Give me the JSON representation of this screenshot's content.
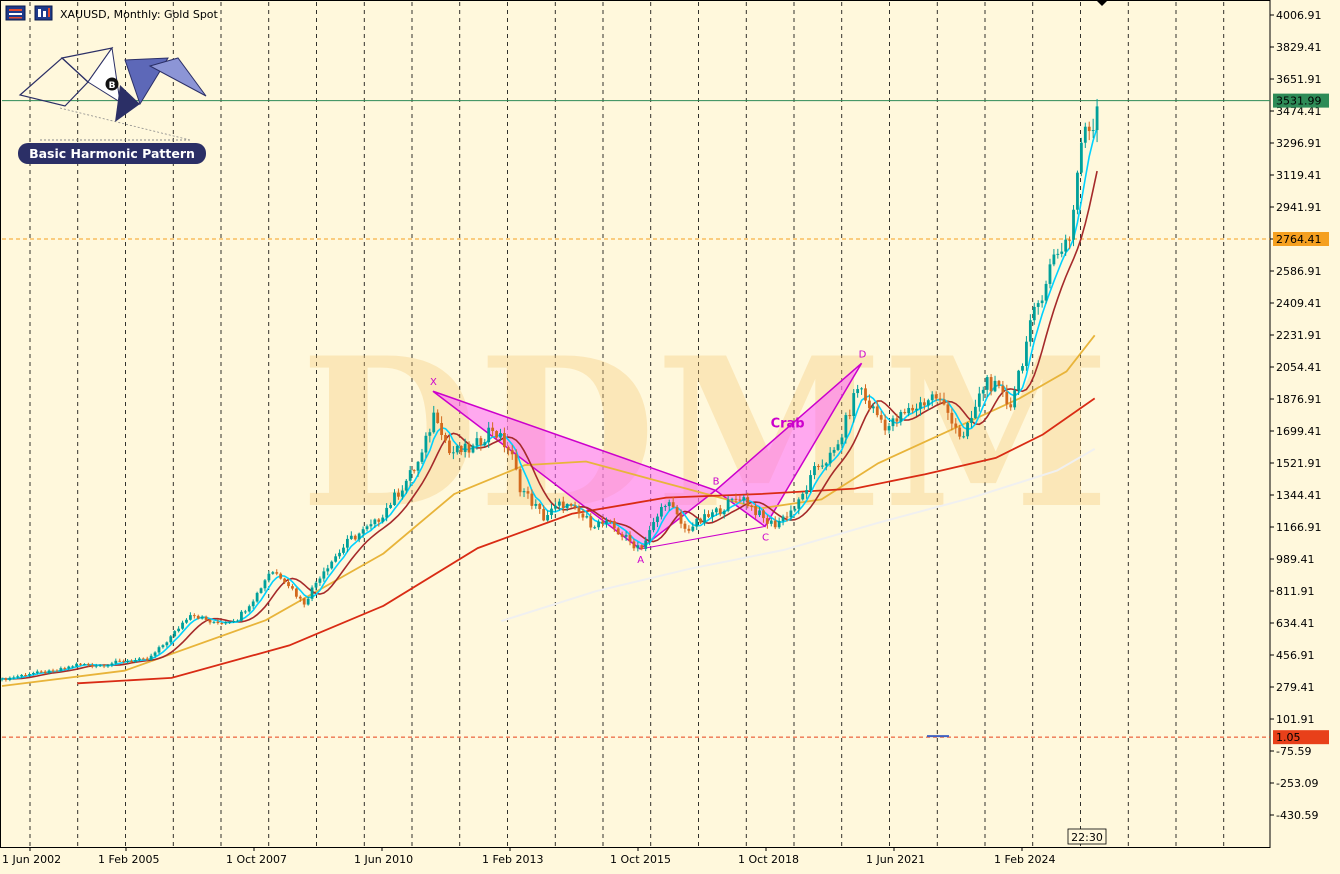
{
  "window": {
    "title": "XAUUSD, Monthly:  Gold Spot",
    "icons": [
      "window-menu-icon",
      "chart-type-icon"
    ]
  },
  "logo": {
    "text": "Basic Harmonic Pattern",
    "badge_letter": "B"
  },
  "watermark": "DDMM",
  "timer": "22:30",
  "colors": {
    "background": "#fff8dc",
    "bull_candle": "#00a09a",
    "bear_candle": "#d2691e",
    "fast_ma": "#00d2ff",
    "signal_ma": "#a52a2a",
    "ma_orange": "#e8b43a",
    "ma_red": "#d92b14",
    "ma_white": "#f0f0f0",
    "pattern_fill": "#ff66ff",
    "pattern_line": "#cc00cc",
    "price_line": "#2e8b57",
    "level_line": "#f5a020",
    "zero_line": "#e8401a",
    "watermark": "#f5c878"
  },
  "chart_data": {
    "type": "candlestick",
    "title": "XAUUSD, Monthly:  Gold Spot",
    "ylim": [
      -430.59,
      4006.91
    ],
    "y_ticks": [
      "4006.91",
      "3829.41",
      "3651.91",
      "3474.41",
      "3296.91",
      "3119.41",
      "2941.91",
      "2764.41",
      "2586.91",
      "2409.41",
      "2231.91",
      "2054.41",
      "1876.91",
      "1699.41",
      "1521.91",
      "1344.41",
      "1166.91",
      "989.41",
      "811.91",
      "634.41",
      "456.91",
      "279.41",
      "101.91",
      "-75.59",
      "-253.09",
      "-430.59"
    ],
    "x_ticks": [
      "1 Jun 2002",
      "1 Feb 2005",
      "1 Oct 2007",
      "1 Jun 2010",
      "1 Feb 2013",
      "1 Oct 2015",
      "1 Oct 2018",
      "1 Jun 2021",
      "1 Feb 2024"
    ],
    "price_levels": [
      {
        "value": 3531.99,
        "label": "3531.99",
        "color": "#2e8b57"
      },
      {
        "value": 2764.41,
        "label": "2764.41",
        "color": "#f5a020"
      },
      {
        "value": 1.05,
        "label": "1.05",
        "color": "#e8401a"
      }
    ],
    "close_points": [
      [
        2002.4,
        320
      ],
      [
        2003.0,
        355
      ],
      [
        2003.5,
        365
      ],
      [
        2004.0,
        405
      ],
      [
        2004.5,
        400
      ],
      [
        2005.0,
        425
      ],
      [
        2005.5,
        430
      ],
      [
        2006.0,
        560
      ],
      [
        2006.4,
        690
      ],
      [
        2006.9,
        630
      ],
      [
        2007.4,
        660
      ],
      [
        2007.8,
        790
      ],
      [
        2008.1,
        930
      ],
      [
        2008.4,
        880
      ],
      [
        2008.8,
        740
      ],
      [
        2009.2,
        920
      ],
      [
        2009.8,
        1100
      ],
      [
        2010.3,
        1180
      ],
      [
        2010.9,
        1390
      ],
      [
        2011.3,
        1550
      ],
      [
        2011.6,
        1820
      ],
      [
        2011.9,
        1580
      ],
      [
        2012.4,
        1600
      ],
      [
        2012.8,
        1720
      ],
      [
        2013.2,
        1580
      ],
      [
        2013.4,
        1390
      ],
      [
        2013.9,
        1220
      ],
      [
        2014.3,
        1300
      ],
      [
        2014.9,
        1190
      ],
      [
        2015.3,
        1180
      ],
      [
        2015.8,
        1070
      ],
      [
        2016.0,
        1060
      ],
      [
        2016.5,
        1320
      ],
      [
        2016.9,
        1150
      ],
      [
        2017.5,
        1240
      ],
      [
        2017.9,
        1310
      ],
      [
        2018.1,
        1340
      ],
      [
        2018.6,
        1200
      ],
      [
        2018.8,
        1180
      ],
      [
        2019.3,
        1290
      ],
      [
        2019.7,
        1500
      ],
      [
        2020.1,
        1580
      ],
      [
        2020.6,
        1970
      ],
      [
        2020.7,
        1880
      ],
      [
        2021.2,
        1720
      ],
      [
        2021.6,
        1800
      ],
      [
        2022.2,
        1900
      ],
      [
        2022.6,
        1760
      ],
      [
        2022.8,
        1640
      ],
      [
        2023.3,
        1990
      ],
      [
        2023.8,
        1840
      ],
      [
        2024.0,
        2040
      ],
      [
        2024.3,
        2330
      ],
      [
        2024.7,
        2650
      ],
      [
        2025.1,
        2800
      ],
      [
        2025.3,
        3300
      ],
      [
        2025.6,
        3420
      ],
      [
        2025.67,
        3531.99
      ]
    ],
    "moving_averages": [
      {
        "points": [
          [
            2002.4,
            285
          ],
          [
            2005.0,
            370
          ],
          [
            2008.0,
            650
          ],
          [
            2010.5,
            1020
          ],
          [
            2012.0,
            1350
          ],
          [
            2013.5,
            1510
          ],
          [
            2014.8,
            1530
          ],
          [
            2016.5,
            1410
          ],
          [
            2018.5,
            1270
          ],
          [
            2019.8,
            1320
          ],
          [
            2021.0,
            1520
          ],
          [
            2022.5,
            1700
          ],
          [
            2024.0,
            1880
          ],
          [
            2025.0,
            2030
          ],
          [
            2025.6,
            2230
          ]
        ]
      },
      {
        "points": [
          [
            2004.0,
            300
          ],
          [
            2006.0,
            330
          ],
          [
            2008.5,
            510
          ],
          [
            2010.5,
            730
          ],
          [
            2012.5,
            1050
          ],
          [
            2014.5,
            1240
          ],
          [
            2016.5,
            1330
          ],
          [
            2018.5,
            1350
          ],
          [
            2020.5,
            1380
          ],
          [
            2022.0,
            1460
          ],
          [
            2023.5,
            1550
          ],
          [
            2024.5,
            1680
          ],
          [
            2025.6,
            1880
          ]
        ]
      },
      {
        "points": [
          [
            2013.0,
            645
          ],
          [
            2015.0,
            810
          ],
          [
            2017.0,
            935
          ],
          [
            2019.0,
            1040
          ],
          [
            2021.0,
            1190
          ],
          [
            2023.0,
            1330
          ],
          [
            2024.8,
            1480
          ],
          [
            2025.6,
            1600
          ]
        ]
      }
    ],
    "pattern": {
      "name": "Crab",
      "points": [
        {
          "label": "X",
          "x": 2011.55,
          "y": 1920
        },
        {
          "label": "A",
          "x": 2015.95,
          "y": 1045
        },
        {
          "label": "B",
          "x": 2017.55,
          "y": 1370
        },
        {
          "label": "C",
          "x": 2018.6,
          "y": 1170
        },
        {
          "label": "D",
          "x": 2020.65,
          "y": 2075
        }
      ]
    }
  }
}
